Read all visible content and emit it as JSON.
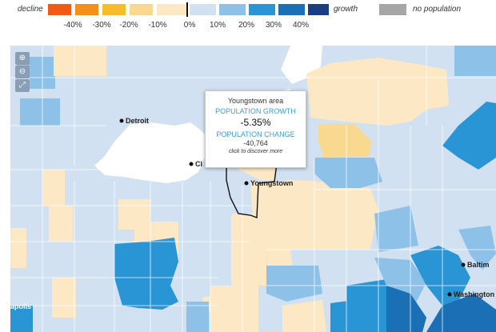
{
  "legend": {
    "decline_label": "decline",
    "growth_label": "growth",
    "no_population_label": "no population",
    "ticks": [
      "-40%",
      "-30%",
      "-20%",
      "-10%",
      "0%",
      "10%",
      "20%",
      "30%",
      "40%"
    ],
    "colors": {
      "c1": "#f05a14",
      "c2": "#f3901a",
      "c3": "#f7bc2c",
      "c4": "#f9d88f",
      "c5": "#fce8c4",
      "c6": "#d1e1f2",
      "c7": "#8dc1e7",
      "c8": "#2a95d5",
      "c9": "#1a6fb5",
      "c10": "#1b3e82",
      "nopop": "#a6a6a6"
    }
  },
  "map_controls": {
    "zoom_in_icon": "zoom-in-icon",
    "zoom_out_icon": "zoom-out-icon",
    "fullscreen_icon": "fullscreen-icon"
  },
  "cities": {
    "detroit": "Detroit",
    "cleveland": "Cl",
    "youngstown": "Youngstown",
    "baltimore": "Baltim",
    "washington": "Washington",
    "indianapolis": "apolis"
  },
  "tooltip": {
    "area": "Youngstown area",
    "growth_heading": "POPULATION GROWTH",
    "growth_value": "-5.35%",
    "change_heading": "POPULATION CHANGE",
    "change_value": "-40,764",
    "discover_link": "click to discover more"
  }
}
